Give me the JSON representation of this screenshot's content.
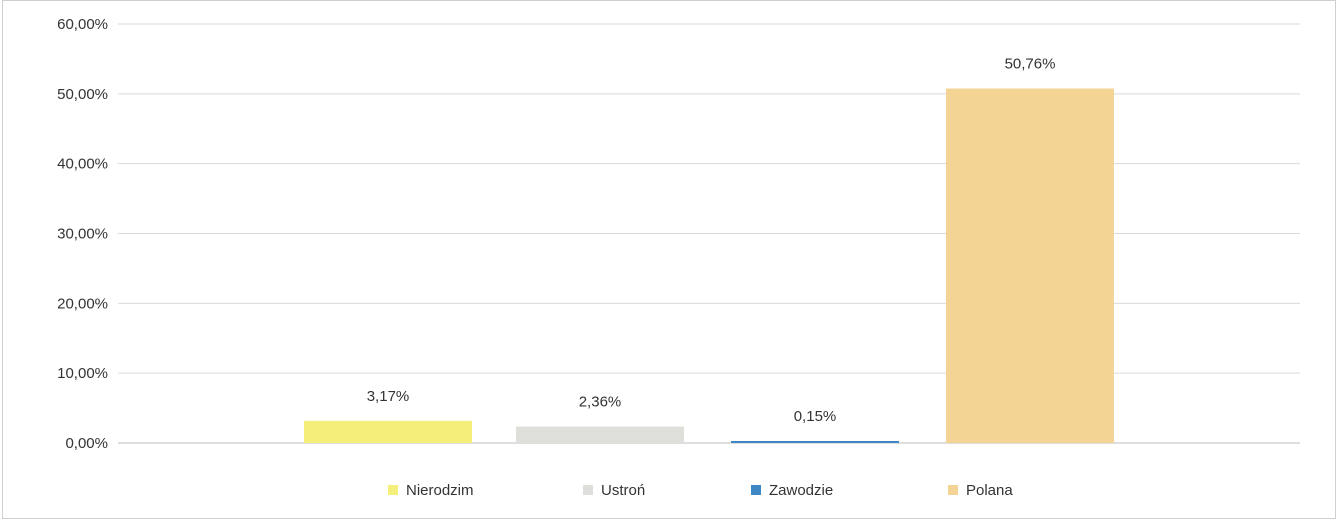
{
  "chart_data": {
    "type": "bar",
    "categories": [
      "Nierodzim",
      "Ustroń",
      "Zawodzie",
      "Polana"
    ],
    "values": [
      3.17,
      2.36,
      0.15,
      50.76
    ],
    "value_labels": [
      "3,17%",
      "2,36%",
      "0,15%",
      "50,76%"
    ],
    "ylim": [
      0,
      60
    ],
    "yticks": [
      "0,00%",
      "10,00%",
      "20,00%",
      "30,00%",
      "40,00%",
      "50,00%",
      "60,00%"
    ],
    "colors": [
      "#f4ef7a",
      "#dededa",
      "#3f86c4",
      "#f4d495"
    ],
    "grid": true,
    "legend_position": "bottom"
  }
}
